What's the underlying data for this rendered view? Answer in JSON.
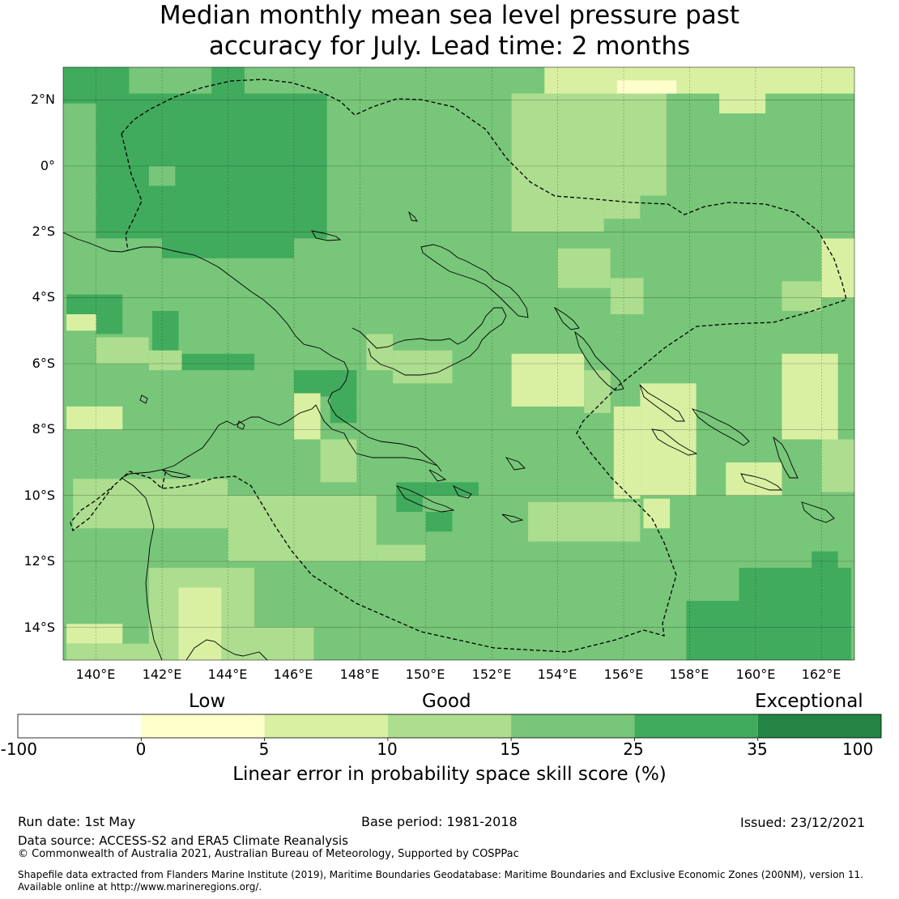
{
  "title_line1": "Median monthly mean sea level pressure past",
  "title_line2": "accuracy for July. Lead time: 2 months",
  "lat_labels": [
    "2°N",
    "0°",
    "2°S",
    "4°S",
    "6°S",
    "8°S",
    "10°S",
    "12°S",
    "14°S"
  ],
  "lon_labels": [
    "140°E",
    "142°E",
    "144°E",
    "146°E",
    "148°E",
    "150°E",
    "152°E",
    "154°E",
    "156°E",
    "158°E",
    "160°E",
    "162°E"
  ],
  "colorbar": {
    "words": [
      "Low",
      "Good",
      "Exceptional"
    ],
    "ticks": [
      "-100",
      "0",
      "5",
      "10",
      "15",
      "25",
      "35",
      "100"
    ],
    "colors": [
      "#ffffff",
      "#ffffcc",
      "#d9f0a3",
      "#addd8e",
      "#78c679",
      "#41ab5d",
      "#238443"
    ],
    "label": "Linear error in probability space skill score (%)"
  },
  "footer": {
    "run_date": "Run date: 1st May",
    "base_period": "Base period: 1981-2018",
    "issued": "Issued: 23/12/2021",
    "data_source": "Data source: ACCESS-S2 and ERA5 Climate Reanalysis",
    "copyright": "© Commonwealth of Australia 2021, Australian Bureau of Meteorology, Supported by COSPPac",
    "shapefile_line1": "Shapefile data extracted from Flanders Marine Institute (2019), Maritime Boundaries Geodatabase: Maritime Boundaries and Exclusive Economic Zones (200NM), version 11.",
    "shapefile_line2": "Available online at http://www.marineregions.org/."
  },
  "map": {
    "base_color": "#78c679",
    "lon_range": [
      139,
      163
    ],
    "lat_range": [
      -15,
      3
    ],
    "skill_regions": [
      {
        "lon": [
          139,
          141
        ],
        "lat": [
          1.9,
          3
        ],
        "color": "#41ab5d"
      },
      {
        "lon": [
          140,
          147
        ],
        "lat": [
          -2.2,
          2.2
        ],
        "color": "#41ab5d"
      },
      {
        "lon": [
          142,
          146
        ],
        "lat": [
          -2.8,
          -2.2
        ],
        "color": "#41ab5d"
      },
      {
        "lon": [
          143.5,
          144.5
        ],
        "lat": [
          2.2,
          3
        ],
        "color": "#41ab5d"
      },
      {
        "lon": [
          146,
          146.9
        ],
        "lat": [
          1.1,
          1.6
        ],
        "color": "#41ab5d"
      },
      {
        "lon": [
          141.6,
          142.4
        ],
        "lat": [
          -0.6,
          0
        ],
        "color": "#78c679"
      },
      {
        "lon": [
          139.1,
          140.8
        ],
        "lat": [
          -4.5,
          -3.9
        ],
        "color": "#41ab5d"
      },
      {
        "lon": [
          140,
          140.8
        ],
        "lat": [
          -5.1,
          -4.5
        ],
        "color": "#41ab5d"
      },
      {
        "lon": [
          141.7,
          142.5
        ],
        "lat": [
          -5.6,
          -4.4
        ],
        "color": "#41ab5d"
      },
      {
        "lon": [
          144.3,
          144.8
        ],
        "lat": [
          -6.2,
          -5.7
        ],
        "color": "#41ab5d"
      },
      {
        "lon": [
          142.5,
          144.3
        ],
        "lat": [
          -6.2,
          -5.7
        ],
        "color": "#41ab5d"
      },
      {
        "lon": [
          146,
          147.9
        ],
        "lat": [
          -7.0,
          -6.2
        ],
        "color": "#41ab5d"
      },
      {
        "lon": [
          147.1,
          147.9
        ],
        "lat": [
          -7.8,
          -6.2
        ],
        "color": "#41ab5d"
      },
      {
        "lon": [
          149.1,
          149.9
        ],
        "lat": [
          -10.5,
          -9.6
        ],
        "color": "#41ab5d"
      },
      {
        "lon": [
          149.9,
          151.6
        ],
        "lat": [
          -10.0,
          -9.6
        ],
        "color": "#41ab5d"
      },
      {
        "lon": [
          150,
          150.8
        ],
        "lat": [
          -11.1,
          -10.5
        ],
        "color": "#41ab5d"
      },
      {
        "lon": [
          159.5,
          162.9
        ],
        "lat": [
          -15,
          -12.2
        ],
        "color": "#41ab5d"
      },
      {
        "lon": [
          161.7,
          162.5
        ],
        "lat": [
          -12.2,
          -11.7
        ],
        "color": "#41ab5d"
      },
      {
        "lon": [
          157.9,
          159.5
        ],
        "lat": [
          -15,
          -13.2
        ],
        "color": "#41ab5d"
      },
      {
        "lon": [
          153.6,
          163
        ],
        "lat": [
          2.2,
          3
        ],
        "color": "#d9f0a3"
      },
      {
        "lon": [
          152.6,
          157.3
        ],
        "lat": [
          -0.9,
          2.2
        ],
        "color": "#addd8e"
      },
      {
        "lon": [
          152.6,
          155.4
        ],
        "lat": [
          -2.0,
          -0.9
        ],
        "color": "#addd8e"
      },
      {
        "lon": [
          155.4,
          156.5
        ],
        "lat": [
          -1.6,
          -0.9
        ],
        "color": "#addd8e"
      },
      {
        "lon": [
          158.9,
          160.3
        ],
        "lat": [
          1.6,
          2.6
        ],
        "color": "#d9f0a3"
      },
      {
        "lon": [
          155.8,
          157.6
        ],
        "lat": [
          2.2,
          2.6
        ],
        "color": "#ffffcc"
      },
      {
        "lon": [
          154,
          155.6
        ],
        "lat": [
          -3.7,
          -2.5
        ],
        "color": "#addd8e"
      },
      {
        "lon": [
          155.6,
          156.6
        ],
        "lat": [
          -4.5,
          -3.4
        ],
        "color": "#addd8e"
      },
      {
        "lon": [
          152.6,
          154.8
        ],
        "lat": [
          -7.3,
          -5.7
        ],
        "color": "#d9f0a3"
      },
      {
        "lon": [
          154.8,
          155.6
        ],
        "lat": [
          -7.5,
          -6.2
        ],
        "color": "#addd8e"
      },
      {
        "lon": [
          156.5,
          158.2
        ],
        "lat": [
          -10.0,
          -6.6
        ],
        "color": "#d9f0a3"
      },
      {
        "lon": [
          155.7,
          156.5
        ],
        "lat": [
          -10.1,
          -7.3
        ],
        "color": "#d9f0a3"
      },
      {
        "lon": [
          156.6,
          157.4
        ],
        "lat": [
          -11.0,
          -10.1
        ],
        "color": "#d9f0a3"
      },
      {
        "lon": [
          153.1,
          156.5
        ],
        "lat": [
          -11.4,
          -10.2
        ],
        "color": "#addd8e"
      },
      {
        "lon": [
          162.0,
          163
        ],
        "lat": [
          -4.0,
          -2.2
        ],
        "color": "#d9f0a3"
      },
      {
        "lon": [
          160.8,
          162.0
        ],
        "lat": [
          -4.4,
          -3.5
        ],
        "color": "#addd8e"
      },
      {
        "lon": [
          160.8,
          162.5
        ],
        "lat": [
          -8.3,
          -5.7
        ],
        "color": "#d9f0a3"
      },
      {
        "lon": [
          162.0,
          163
        ],
        "lat": [
          -9.9,
          -8.3
        ],
        "color": "#addd8e"
      },
      {
        "lon": [
          159.1,
          160.8
        ],
        "lat": [
          -10.0,
          -9.0
        ],
        "color": "#d9f0a3"
      },
      {
        "lon": [
          139.1,
          140.8
        ],
        "lat": [
          -8.0,
          -7.3
        ],
        "color": "#d9f0a3"
      },
      {
        "lon": [
          140,
          141.6
        ],
        "lat": [
          -6.0,
          -5.2
        ],
        "color": "#addd8e"
      },
      {
        "lon": [
          139.1,
          140.0
        ],
        "lat": [
          -5.0,
          -4.5
        ],
        "color": "#d9f0a3"
      },
      {
        "lon": [
          141.6,
          142.6
        ],
        "lat": [
          -6.2,
          -5.6
        ],
        "color": "#addd8e"
      },
      {
        "lon": [
          146.0,
          146.8
        ],
        "lat": [
          -8.3,
          -6.9
        ],
        "color": "#d9f0a3"
      },
      {
        "lon": [
          146.8,
          147.9
        ],
        "lat": [
          -9.6,
          -8.3
        ],
        "color": "#addd8e"
      },
      {
        "lon": [
          148.2,
          149.0
        ],
        "lat": [
          -6.2,
          -5.1
        ],
        "color": "#addd8e"
      },
      {
        "lon": [
          149.0,
          150.8
        ],
        "lat": [
          -6.6,
          -5.6
        ],
        "color": "#addd8e"
      },
      {
        "lon": [
          139.3,
          144.0
        ],
        "lat": [
          -11.0,
          -9.5
        ],
        "color": "#addd8e"
      },
      {
        "lon": [
          144.0,
          148.5
        ],
        "lat": [
          -12.0,
          -10.0
        ],
        "color": "#addd8e"
      },
      {
        "lon": [
          141.6,
          144.8
        ],
        "lat": [
          -15,
          -12.2
        ],
        "color": "#addd8e"
      },
      {
        "lon": [
          142.5,
          143.8
        ],
        "lat": [
          -15,
          -12.8
        ],
        "color": "#d9f0a3"
      },
      {
        "lon": [
          139.1,
          140.8
        ],
        "lat": [
          -14.5,
          -13.9
        ],
        "color": "#d9f0a3"
      },
      {
        "lon": [
          139.1,
          141.6
        ],
        "lat": [
          -15,
          -14.5
        ],
        "color": "#addd8e"
      },
      {
        "lon": [
          143.8,
          146.6
        ],
        "lat": [
          -15,
          -14.0
        ],
        "color": "#addd8e"
      },
      {
        "lon": [
          148.5,
          150.0
        ],
        "lat": [
          -12.0,
          -11.5
        ],
        "color": "#addd8e"
      }
    ]
  }
}
